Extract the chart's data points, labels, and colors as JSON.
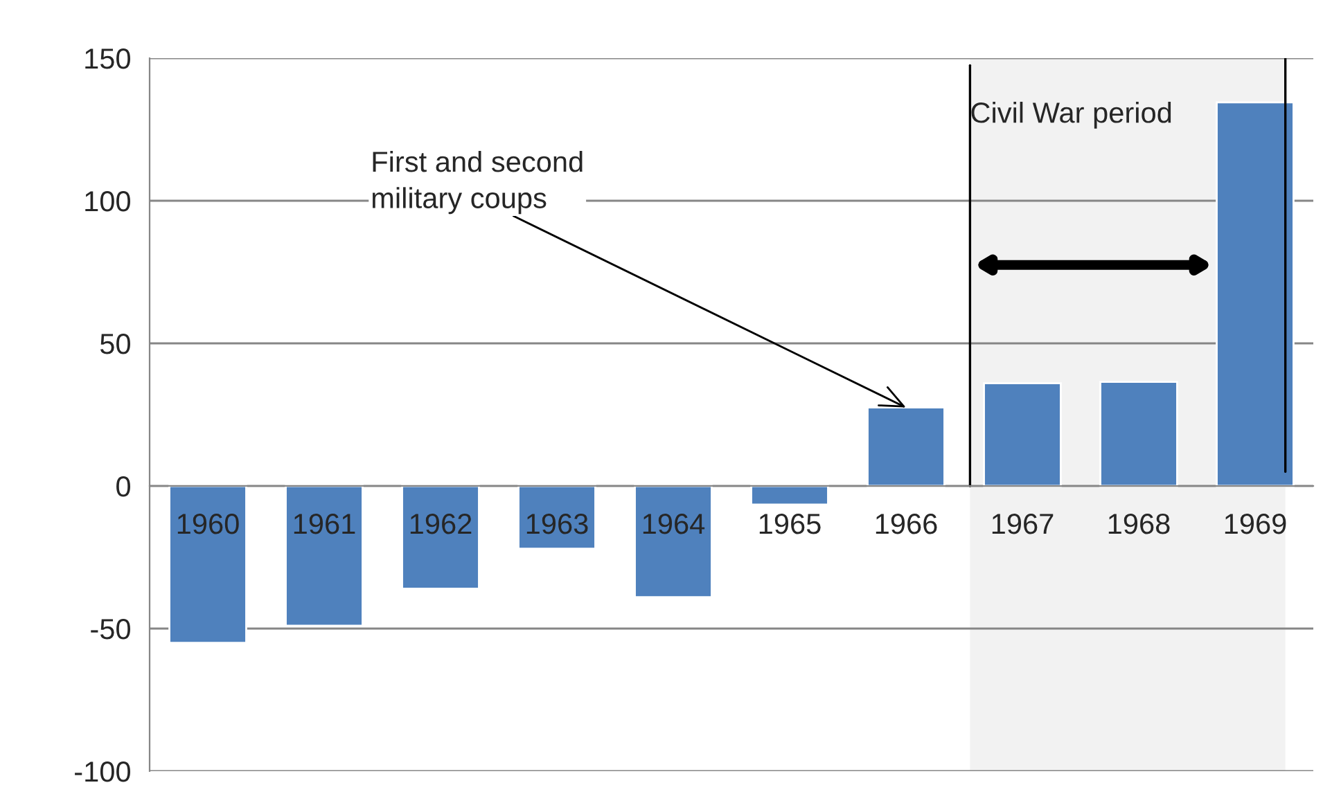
{
  "chart_data": {
    "type": "bar",
    "categories": [
      "1960",
      "1961",
      "1962",
      "1963",
      "1964",
      "1965",
      "1966",
      "1967",
      "1968",
      "1969"
    ],
    "values": [
      -55,
      -49,
      -36,
      -22,
      -39,
      -6.5,
      27.5,
      36,
      36.5,
      134.5
    ],
    "color": "#4f81bd",
    "ylim": [
      -100,
      150
    ],
    "yticks": [
      -100,
      -50,
      0,
      50,
      100,
      150
    ],
    "grid": "y",
    "bands": [
      {
        "axis": "x",
        "from": "1967",
        "to": "1969",
        "label": "Civil War period",
        "color": "#f2f2f2"
      }
    ],
    "annotations": [
      {
        "text": "First and second\nmilitary coups",
        "x": "1966",
        "y": 27.5
      }
    ]
  }
}
